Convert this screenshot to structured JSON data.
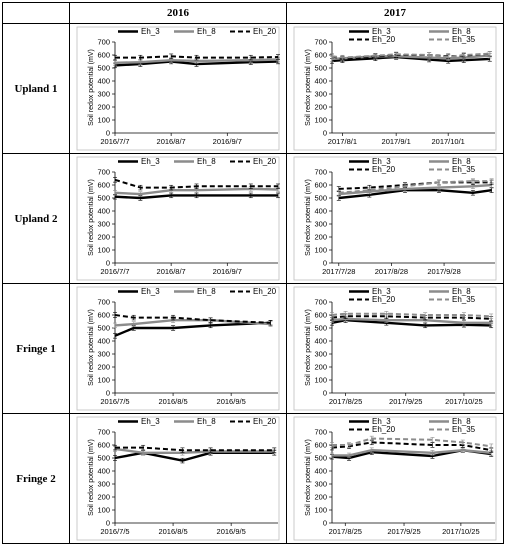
{
  "headers": {
    "col1": "2016",
    "col2": "2017"
  },
  "rows": [
    {
      "label": "Upland 1"
    },
    {
      "label": "Upland 2"
    },
    {
      "label": "Fringe 1"
    },
    {
      "label": "Fringe 2"
    }
  ],
  "colors": {
    "Eh_3": "#000000",
    "Eh_8": "#8c8c8c",
    "Eh_20": "#000000",
    "Eh_35": "#8c8c8c"
  },
  "chart_data": [
    {
      "id": "upland1-2016",
      "type": "line",
      "ylabel": "Soil redox potential (mV)",
      "ylim": [
        0,
        700
      ],
      "yticks": [
        0,
        100,
        200,
        300,
        400,
        500,
        600,
        700
      ],
      "x": [
        "2016-07-07",
        "2016-07-21",
        "2016-08-07",
        "2016-08-21",
        "2016-09-20",
        "2016-10-05"
      ],
      "xticks": [
        [
          "2016-07-07",
          "2016/7/7"
        ],
        [
          "2016-08-07",
          "2016/8/7"
        ],
        [
          "2016-09-07",
          "2016/9/7"
        ]
      ],
      "xrange": [
        "2016-07-07",
        "2016-10-05"
      ],
      "legend": {
        "cols": 3,
        "placement": "top"
      },
      "series": [
        {
          "name": "Eh_3",
          "values": [
            520,
            530,
            550,
            530,
            545,
            550
          ]
        },
        {
          "name": "Eh_8",
          "values": [
            540,
            545,
            560,
            555,
            560,
            565
          ]
        },
        {
          "name": "Eh_20",
          "values": [
            580,
            580,
            590,
            580,
            580,
            585
          ]
        }
      ]
    },
    {
      "id": "upland1-2017",
      "type": "line",
      "ylabel": "Soil redox potential (mV)",
      "ylim": [
        0,
        700
      ],
      "yticks": [
        0,
        100,
        200,
        300,
        400,
        500,
        600,
        700
      ],
      "x": [
        "2017-07-26",
        "2017-08-01",
        "2017-08-20",
        "2017-09-01",
        "2017-09-20",
        "2017-10-01",
        "2017-10-10",
        "2017-10-25"
      ],
      "xticks": [
        [
          "2017-08-01",
          "2017/8/1"
        ],
        [
          "2017-09-01",
          "2017/9/1"
        ],
        [
          "2017-10-01",
          "2017/10/1"
        ]
      ],
      "xrange": [
        "2017-07-26",
        "2017-10-28"
      ],
      "legend": {
        "cols": 2,
        "placement": "top"
      },
      "series": [
        {
          "name": "Eh_3",
          "values": [
            555,
            560,
            575,
            585,
            565,
            555,
            560,
            570
          ]
        },
        {
          "name": "Eh_8",
          "values": [
            570,
            575,
            590,
            590,
            580,
            575,
            580,
            595
          ]
        },
        {
          "name": "Eh_20",
          "values": [
            590,
            570,
            590,
            600,
            600,
            590,
            595,
            610
          ]
        },
        {
          "name": "Eh_35",
          "values": [
            590,
            580,
            595,
            605,
            600,
            585,
            600,
            610
          ]
        }
      ]
    },
    {
      "id": "upland2-2016",
      "type": "line",
      "ylabel": "Soil redox potential (mV)",
      "ylim": [
        0,
        700
      ],
      "yticks": [
        0,
        100,
        200,
        300,
        400,
        500,
        600,
        700
      ],
      "x": [
        "2016-07-07",
        "2016-07-21",
        "2016-08-07",
        "2016-08-21",
        "2016-09-20",
        "2016-10-05"
      ],
      "xticks": [
        [
          "2016-07-07",
          "2016/7/7"
        ],
        [
          "2016-08-07",
          "2016/8/7"
        ],
        [
          "2016-09-07",
          "2016/9/7"
        ]
      ],
      "xrange": [
        "2016-07-07",
        "2016-10-05"
      ],
      "legend": {
        "cols": 3,
        "placement": "top"
      },
      "series": [
        {
          "name": "Eh_3",
          "values": [
            510,
            500,
            520,
            520,
            520,
            520
          ]
        },
        {
          "name": "Eh_8",
          "values": [
            540,
            530,
            560,
            560,
            570,
            565
          ]
        },
        {
          "name": "Eh_20",
          "values": [
            640,
            580,
            580,
            590,
            590,
            590
          ]
        }
      ]
    },
    {
      "id": "upland2-2017",
      "type": "line",
      "ylabel": "Soil redox potential (mV)",
      "ylim": [
        0,
        700
      ],
      "yticks": [
        0,
        100,
        200,
        300,
        400,
        500,
        600,
        700
      ],
      "x": [
        "2017-07-28",
        "2017-08-15",
        "2017-09-05",
        "2017-09-25",
        "2017-10-15",
        "2017-10-26"
      ],
      "xticks": [
        [
          "2017-07-28",
          "2017/7/28"
        ],
        [
          "2017-08-28",
          "2017/8/28"
        ],
        [
          "2017-09-28",
          "2017/9/28"
        ]
      ],
      "xrange": [
        "2017-07-24",
        "2017-10-28"
      ],
      "legend": {
        "cols": 2,
        "placement": "top"
      },
      "series": [
        {
          "name": "Eh_3",
          "values": [
            500,
            525,
            560,
            560,
            540,
            560
          ]
        },
        {
          "name": "Eh_8",
          "values": [
            530,
            550,
            570,
            580,
            590,
            600
          ]
        },
        {
          "name": "Eh_20",
          "values": [
            570,
            580,
            600,
            620,
            620,
            620
          ]
        },
        {
          "name": "Eh_35",
          "values": [
            540,
            560,
            590,
            620,
            630,
            630
          ]
        }
      ]
    },
    {
      "id": "fringe1-2016",
      "type": "line",
      "ylabel": "Soil redox potential (mV)",
      "ylim": [
        0,
        700
      ],
      "yticks": [
        0,
        100,
        200,
        300,
        400,
        500,
        600,
        700
      ],
      "x": [
        "2016-07-05",
        "2016-07-15",
        "2016-08-05",
        "2016-08-25",
        "2016-09-26"
      ],
      "xticks": [
        [
          "2016-07-05",
          "2016/7/5"
        ],
        [
          "2016-08-05",
          "2016/8/5"
        ],
        [
          "2016-09-05",
          "2016/9/5"
        ]
      ],
      "xrange": [
        "2016-07-05",
        "2016-09-30"
      ],
      "legend": {
        "cols": 3,
        "placement": "top"
      },
      "series": [
        {
          "name": "Eh_3",
          "values": [
            440,
            500,
            500,
            520,
            540
          ]
        },
        {
          "name": "Eh_8",
          "values": [
            520,
            530,
            560,
            560,
            530
          ]
        },
        {
          "name": "Eh_20",
          "values": [
            600,
            580,
            580,
            560,
            540
          ]
        }
      ]
    },
    {
      "id": "fringe1-2017",
      "type": "line",
      "ylabel": "Soil redox potential (mV)",
      "ylim": [
        0,
        700
      ],
      "yticks": [
        0,
        100,
        200,
        300,
        400,
        500,
        600,
        700
      ],
      "x": [
        "2017-08-18",
        "2017-08-25",
        "2017-09-15",
        "2017-10-05",
        "2017-10-25",
        "2017-11-08"
      ],
      "xticks": [
        [
          "2017-08-25",
          "2017/8/25"
        ],
        [
          "2017-09-25",
          "2017/9/25"
        ],
        [
          "2017-10-25",
          "2017/10/25"
        ]
      ],
      "xrange": [
        "2017-08-18",
        "2017-11-10"
      ],
      "legend": {
        "cols": 2,
        "placement": "top"
      },
      "series": [
        {
          "name": "Eh_3",
          "values": [
            540,
            560,
            540,
            520,
            525,
            520
          ]
        },
        {
          "name": "Eh_8",
          "values": [
            560,
            570,
            560,
            560,
            540,
            540
          ]
        },
        {
          "name": "Eh_20",
          "values": [
            580,
            590,
            590,
            580,
            580,
            570
          ]
        },
        {
          "name": "Eh_35",
          "values": [
            600,
            610,
            610,
            600,
            600,
            590
          ]
        }
      ]
    },
    {
      "id": "fringe2-2016",
      "type": "line",
      "ylabel": "Soil redox potential (mV)",
      "ylim": [
        0,
        700
      ],
      "yticks": [
        0,
        100,
        200,
        300,
        400,
        500,
        600,
        700
      ],
      "x": [
        "2016-07-05",
        "2016-07-20",
        "2016-08-10",
        "2016-08-25",
        "2016-09-28"
      ],
      "xticks": [
        [
          "2016-07-05",
          "2016/7/5"
        ],
        [
          "2016-08-05",
          "2016/8/5"
        ],
        [
          "2016-09-05",
          "2016/9/5"
        ]
      ],
      "xrange": [
        "2016-07-05",
        "2016-09-30"
      ],
      "legend": {
        "cols": 3,
        "placement": "top"
      },
      "series": [
        {
          "name": "Eh_3",
          "values": [
            500,
            540,
            480,
            540,
            540
          ]
        },
        {
          "name": "Eh_8",
          "values": [
            570,
            540,
            540,
            550,
            550
          ]
        },
        {
          "name": "Eh_20",
          "values": [
            580,
            580,
            560,
            560,
            560
          ]
        }
      ]
    },
    {
      "id": "fringe2-2017",
      "type": "line",
      "ylabel": "Soil redox potential (mV)",
      "ylim": [
        0,
        700
      ],
      "yticks": [
        0,
        100,
        200,
        300,
        400,
        500,
        600,
        700
      ],
      "x": [
        "2017-08-18",
        "2017-08-27",
        "2017-09-08",
        "2017-10-10",
        "2017-10-26",
        "2017-11-10"
      ],
      "xticks": [
        [
          "2017-08-25",
          "2017/8/25"
        ],
        [
          "2017-09-25",
          "2017/9/25"
        ],
        [
          "2017-10-25",
          "2017/10/25"
        ]
      ],
      "xrange": [
        "2017-08-18",
        "2017-11-12"
      ],
      "legend": {
        "cols": 2,
        "placement": "top"
      },
      "series": [
        {
          "name": "Eh_3",
          "values": [
            510,
            500,
            545,
            515,
            560,
            530
          ]
        },
        {
          "name": "Eh_8",
          "values": [
            520,
            520,
            560,
            540,
            560,
            540
          ]
        },
        {
          "name": "Eh_20",
          "values": [
            580,
            590,
            620,
            600,
            600,
            560
          ]
        },
        {
          "name": "Eh_35",
          "values": [
            600,
            600,
            650,
            640,
            620,
            590
          ]
        }
      ]
    }
  ]
}
